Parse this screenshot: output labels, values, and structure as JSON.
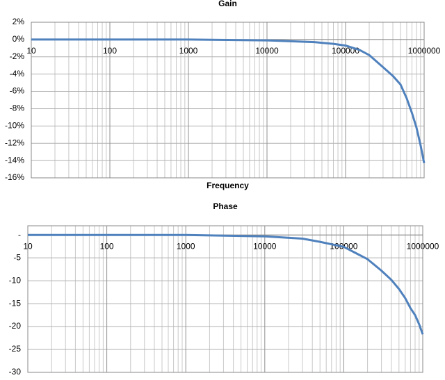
{
  "chart_data": [
    {
      "type": "line",
      "title": "Gain",
      "x_label": "Frequency",
      "log_x": true,
      "grid": true,
      "color": "#4f81bd",
      "x": [
        10,
        100,
        1000,
        10000,
        20000,
        40000,
        70000,
        100000,
        150000,
        200000,
        300000,
        400000,
        500000,
        600000,
        700000,
        800000,
        900000,
        1000000
      ],
      "values": [
        0,
        0,
        0,
        -0.1,
        -0.2,
        -0.3,
        -0.5,
        -0.7,
        -1.2,
        -1.8,
        -3.2,
        -4.2,
        -5.2,
        -6.8,
        -8.5,
        -10.2,
        -12.2,
        -14.3
      ],
      "xlim": [
        10,
        1000000
      ],
      "xticks": [
        10,
        100,
        1000,
        10000,
        100000,
        1000000
      ],
      "ylim": [
        -16,
        2
      ],
      "yticks": [
        {
          "value": 2,
          "label": "2%"
        },
        {
          "value": 0,
          "label": "0%"
        },
        {
          "value": -2,
          "label": "-2%"
        },
        {
          "value": -4,
          "label": "-4%"
        },
        {
          "value": -6,
          "label": "-6%"
        },
        {
          "value": -8,
          "label": "-8%"
        },
        {
          "value": -10,
          "label": "-10%"
        },
        {
          "value": -12,
          "label": "-12%"
        },
        {
          "value": -14,
          "label": "-14%"
        },
        {
          "value": -16,
          "label": "-16%"
        }
      ]
    },
    {
      "type": "line",
      "title": "Phase",
      "log_x": true,
      "grid": true,
      "color": "#4f81bd",
      "x": [
        10,
        100,
        1000,
        10000,
        30000,
        50000,
        100000,
        200000,
        300000,
        400000,
        500000,
        600000,
        700000,
        800000,
        900000,
        1000000
      ],
      "values": [
        0,
        0,
        0,
        -0.3,
        -0.8,
        -1.5,
        -2.6,
        -5.3,
        -7.8,
        -9.8,
        -11.8,
        -13.8,
        -16,
        -17.5,
        -19.5,
        -21.7
      ],
      "xlim": [
        10,
        1000000
      ],
      "xticks": [
        10,
        100,
        1000,
        10000,
        100000,
        1000000
      ],
      "ylim": [
        -30,
        2
      ],
      "yticks": [
        {
          "value": 0,
          "label": "-"
        },
        -5,
        -10,
        -15,
        -20,
        -25,
        -30
      ]
    }
  ]
}
